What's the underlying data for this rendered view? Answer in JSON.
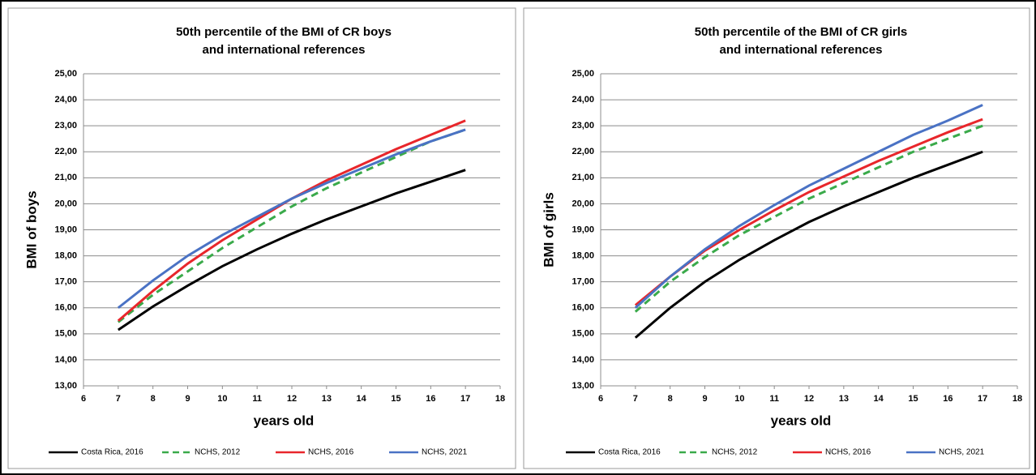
{
  "chart_data": [
    {
      "type": "line",
      "title": [
        "50th percentile of the BMI of CR  boys",
        "and international references"
      ],
      "x_label": "years old",
      "y_label": "BMI of boys",
      "x": [
        7,
        8,
        9,
        10,
        11,
        12,
        13,
        14,
        15,
        16,
        17
      ],
      "xlim": [
        6,
        18
      ],
      "xticks": [
        6,
        7,
        8,
        9,
        10,
        11,
        12,
        13,
        14,
        15,
        16,
        17,
        18
      ],
      "ylim": [
        13,
        25
      ],
      "yticks": [
        {
          "value": 13,
          "label": "13,00"
        },
        {
          "value": 14,
          "label": "14,00"
        },
        {
          "value": 15,
          "label": "15,00"
        },
        {
          "value": 16,
          "label": "16,00"
        },
        {
          "value": 17,
          "label": "17,00"
        },
        {
          "value": 18,
          "label": "18,00"
        },
        {
          "value": 19,
          "label": "19,00"
        },
        {
          "value": 20,
          "label": "20,00"
        },
        {
          "value": 21,
          "label": "21,00"
        },
        {
          "value": 22,
          "label": "22,00"
        },
        {
          "value": 23,
          "label": "23,00"
        },
        {
          "value": 24,
          "label": "24,00"
        },
        {
          "value": 25,
          "label": "25,00"
        }
      ],
      "grid": true,
      "legend": "bottom",
      "series": [
        {
          "name": "Costa Rica, 2016",
          "color": "#000000",
          "dash": "solid",
          "values": [
            15.15,
            16.05,
            16.85,
            17.6,
            18.25,
            18.85,
            19.4,
            19.9,
            20.4,
            20.85,
            21.3
          ]
        },
        {
          "name": "NCHS, 2012",
          "color": "#3aaa4a",
          "dash": "dashed",
          "values": [
            15.45,
            16.5,
            17.4,
            18.3,
            19.1,
            19.9,
            20.6,
            21.2,
            21.8,
            22.4,
            22.85
          ]
        },
        {
          "name": "NCHS, 2016",
          "color": "#e8262b",
          "dash": "solid",
          "values": [
            15.5,
            16.65,
            17.7,
            18.6,
            19.4,
            20.2,
            20.9,
            21.5,
            22.1,
            22.65,
            23.2
          ]
        },
        {
          "name": "NCHS, 2021",
          "color": "#4a72c4",
          "dash": "solid",
          "values": [
            16.0,
            17.05,
            18.0,
            18.8,
            19.5,
            20.2,
            20.8,
            21.35,
            21.9,
            22.4,
            22.85
          ]
        }
      ]
    },
    {
      "type": "line",
      "title": [
        "50th percentile of the BMI of CR girls",
        "and international references"
      ],
      "x_label": "years old",
      "y_label": "BMI of girls",
      "x": [
        7,
        8,
        9,
        10,
        11,
        12,
        13,
        14,
        15,
        16,
        17
      ],
      "xlim": [
        6,
        18
      ],
      "xticks": [
        6,
        7,
        8,
        9,
        10,
        11,
        12,
        13,
        14,
        15,
        16,
        17,
        18
      ],
      "ylim": [
        13,
        25
      ],
      "yticks": [
        {
          "value": 13,
          "label": "13,00"
        },
        {
          "value": 14,
          "label": "14,00"
        },
        {
          "value": 15,
          "label": "15,00"
        },
        {
          "value": 16,
          "label": "16,00"
        },
        {
          "value": 17,
          "label": "17,00"
        },
        {
          "value": 18,
          "label": "18,00"
        },
        {
          "value": 19,
          "label": "19,00"
        },
        {
          "value": 20,
          "label": "20,00"
        },
        {
          "value": 21,
          "label": "21,00"
        },
        {
          "value": 22,
          "label": "22,00"
        },
        {
          "value": 23,
          "label": "23,00"
        },
        {
          "value": 24,
          "label": "24,00"
        },
        {
          "value": 25,
          "label": "25,00"
        }
      ],
      "grid": true,
      "legend": "bottom",
      "series": [
        {
          "name": "Costa Rica, 2016",
          "color": "#000000",
          "dash": "solid",
          "values": [
            14.85,
            16.0,
            17.0,
            17.85,
            18.6,
            19.3,
            19.9,
            20.45,
            21.0,
            21.5,
            22.0
          ]
        },
        {
          "name": "NCHS, 2012",
          "color": "#3aaa4a",
          "dash": "dashed",
          "values": [
            15.85,
            17.0,
            17.95,
            18.8,
            19.5,
            20.2,
            20.8,
            21.4,
            22.0,
            22.5,
            23.0
          ]
        },
        {
          "name": "NCHS, 2016",
          "color": "#e8262b",
          "dash": "solid",
          "values": [
            16.1,
            17.2,
            18.2,
            19.0,
            19.75,
            20.45,
            21.05,
            21.65,
            22.2,
            22.75,
            23.25
          ]
        },
        {
          "name": "NCHS, 2021",
          "color": "#4a72c4",
          "dash": "solid",
          "values": [
            16.0,
            17.2,
            18.25,
            19.15,
            19.95,
            20.7,
            21.35,
            22.0,
            22.65,
            23.2,
            23.8
          ]
        }
      ]
    }
  ]
}
